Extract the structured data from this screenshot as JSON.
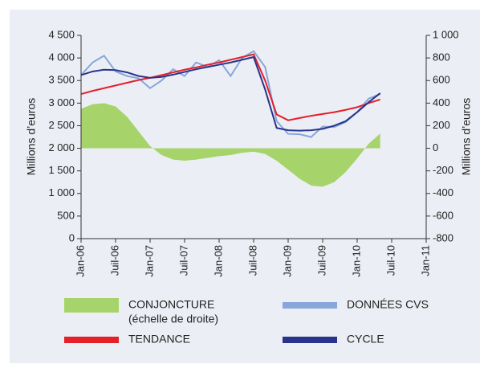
{
  "chart_data": {
    "type": "line",
    "xticks": [
      {
        "value": 0,
        "label": "Jan-06"
      },
      {
        "value": 6,
        "label": "Juil-06"
      },
      {
        "value": 12,
        "label": "Jan-07"
      },
      {
        "value": 18,
        "label": "Juil-07"
      },
      {
        "value": 24,
        "label": "Jan-08"
      },
      {
        "value": 30,
        "label": "Juil-08"
      },
      {
        "value": 36,
        "label": "Jan-09"
      },
      {
        "value": 42,
        "label": "Juil-09"
      },
      {
        "value": 48,
        "label": "Jan-10"
      },
      {
        "value": 54,
        "label": "Juil-10"
      },
      {
        "value": 60,
        "label": "Jan-11"
      }
    ],
    "xlim": [
      0,
      60
    ],
    "x": [
      0,
      2,
      4,
      6,
      8,
      10,
      12,
      14,
      16,
      18,
      20,
      22,
      24,
      26,
      28,
      30,
      32,
      34,
      36,
      38,
      40,
      42,
      44,
      46,
      48,
      50,
      52
    ],
    "ylabel": "Millions d’euros",
    "y2label": "Millions d’euros",
    "ylim": [
      0,
      4500
    ],
    "yticks": [
      0,
      500,
      {
        "value": 1000,
        "label": "1 000"
      },
      {
        "value": 1500,
        "label": "1 500"
      },
      {
        "value": 2000,
        "label": "2 000"
      },
      {
        "value": 2500,
        "label": "2 500"
      },
      {
        "value": 3000,
        "label": "3 000"
      },
      {
        "value": 3500,
        "label": "3 500"
      },
      {
        "value": 4000,
        "label": "4 000"
      },
      {
        "value": 4500,
        "label": "4 500"
      }
    ],
    "y2lim": [
      -800,
      1000
    ],
    "y2ticks": [
      -800,
      -600,
      -400,
      -200,
      0,
      200,
      400,
      600,
      800,
      {
        "value": 1000,
        "label": "1 000"
      }
    ],
    "grid": false,
    "series": [
      {
        "name": "CONJONCTURE",
        "note": "(échelle de droite)",
        "style": "area",
        "axis": "y2",
        "color": "#a6d46a",
        "values": [
          350,
          390,
          400,
          370,
          280,
          150,
          20,
          -60,
          -100,
          -110,
          -100,
          -85,
          -70,
          -60,
          -40,
          -30,
          -50,
          -110,
          -190,
          -270,
          -330,
          -340,
          -300,
          -210,
          -90,
          40,
          130
        ]
      },
      {
        "name": "DONNÉES CVS",
        "style": "line",
        "color": "#87a6d9",
        "values": [
          3620,
          3900,
          4050,
          3700,
          3600,
          3550,
          3330,
          3500,
          3750,
          3600,
          3900,
          3800,
          3950,
          3600,
          4000,
          4150,
          3800,
          2600,
          2320,
          2310,
          2250,
          2480,
          2470,
          2580,
          2800,
          3100,
          3200
        ]
      },
      {
        "name": "TENDANCE",
        "style": "line",
        "color": "#e4202a",
        "values": [
          3200,
          3270,
          3330,
          3390,
          3450,
          3510,
          3560,
          3620,
          3680,
          3740,
          3790,
          3850,
          3900,
          3960,
          4020,
          4080,
          3500,
          2750,
          2620,
          2670,
          2720,
          2760,
          2800,
          2850,
          2910,
          3000,
          3080
        ]
      },
      {
        "name": "CYCLE",
        "style": "line",
        "color": "#27348b",
        "values": [
          3620,
          3700,
          3740,
          3730,
          3680,
          3600,
          3560,
          3580,
          3630,
          3690,
          3750,
          3800,
          3850,
          3900,
          3960,
          4020,
          3300,
          2450,
          2400,
          2390,
          2400,
          2430,
          2500,
          2600,
          2800,
          3020,
          3220
        ]
      }
    ]
  }
}
